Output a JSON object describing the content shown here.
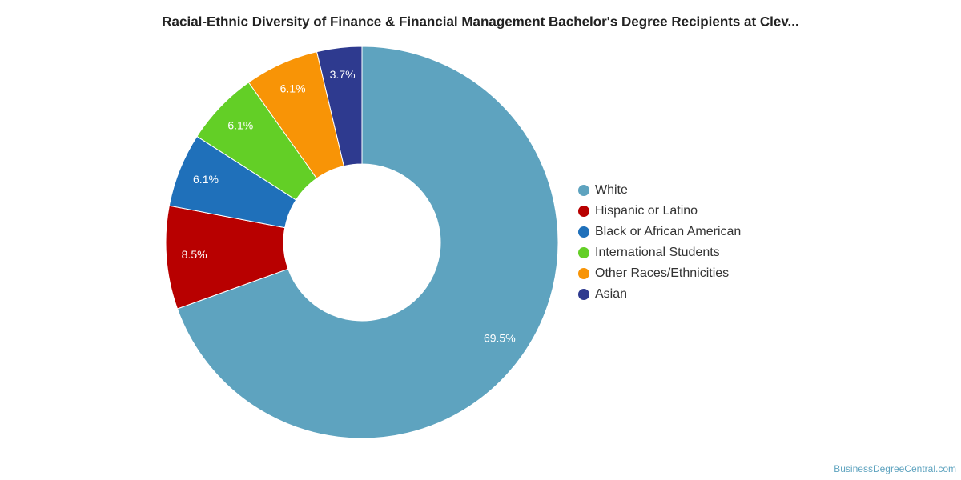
{
  "chart_data": {
    "type": "donut",
    "title": "Racial-Ethnic Diversity of Finance & Financial Management Bachelor's Degree Recipients at Clev...",
    "categories": [
      "White",
      "Hispanic or Latino",
      "Black or African American",
      "International Students",
      "Other Races/Ethnicities",
      "Asian"
    ],
    "values": [
      69.5,
      8.5,
      6.1,
      6.1,
      6.1,
      3.7
    ],
    "value_labels": [
      "69.5%",
      "8.5%",
      "6.1%",
      "6.1%",
      "6.1%",
      "3.7%"
    ],
    "colors": [
      "#5ea3bf",
      "#b80000",
      "#1f70ba",
      "#63cf26",
      "#f89406",
      "#2e3a8f"
    ],
    "legend": "right",
    "source": "BusinessDegreeCentral.com"
  }
}
